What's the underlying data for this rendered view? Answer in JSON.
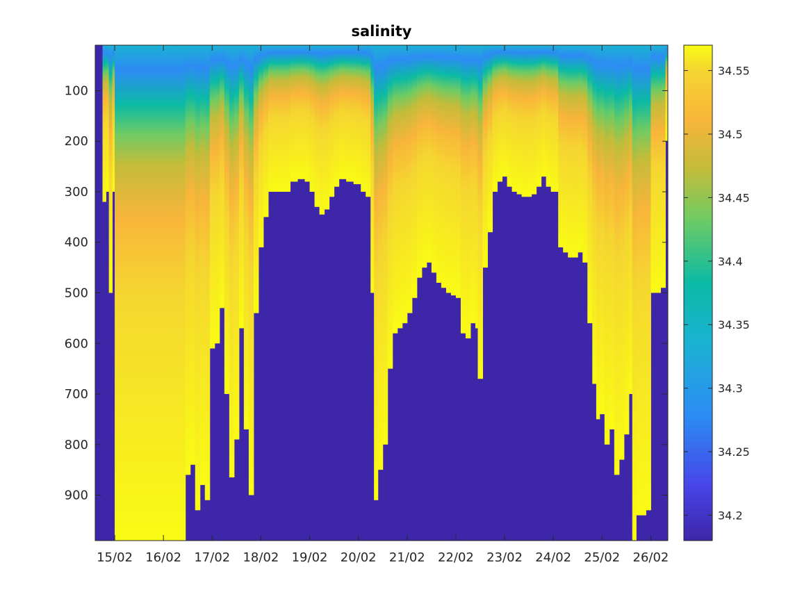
{
  "chart_data": {
    "type": "heatmap",
    "title": "salinity",
    "xlabel": "",
    "ylabel": "",
    "x_tick_labels": [
      "15/02",
      "16/02",
      "17/02",
      "18/02",
      "19/02",
      "20/02",
      "21/02",
      "22/02",
      "23/02",
      "24/02",
      "25/02",
      "26/02"
    ],
    "x_range_days": [
      14.6,
      26.35
    ],
    "y_ticks": [
      100,
      200,
      300,
      400,
      500,
      600,
      700,
      800,
      900
    ],
    "y_range": [
      10,
      990
    ],
    "y_reversed": true,
    "colorbar": {
      "range": [
        34.18,
        34.57
      ],
      "ticks": [
        34.2,
        34.25,
        34.3,
        34.35,
        34.4,
        34.45,
        34.5,
        34.55
      ],
      "tick_labels": [
        "34.2",
        "34.25",
        "34.3",
        "34.35",
        "34.4",
        "34.45",
        "34.5",
        "34.55"
      ],
      "colormap": [
        "#3e26a8",
        "#4744e8",
        "#2d8bf4",
        "#1bb2d3",
        "#0bbaa5",
        "#6fcb63",
        "#c3bc3a",
        "#f8b53a",
        "#f5d630",
        "#f9fb14"
      ]
    },
    "fill_color": "#3e26a8",
    "profile_bottom_depth": [
      [
        14.75,
        320
      ],
      [
        14.82,
        300
      ],
      [
        14.88,
        500
      ],
      [
        14.95,
        300
      ],
      [
        15.0,
        990
      ],
      [
        15.4,
        990
      ],
      [
        15.6,
        990
      ],
      [
        15.8,
        990
      ],
      [
        16.0,
        990
      ],
      [
        16.2,
        990
      ],
      [
        16.35,
        990
      ],
      [
        16.45,
        860
      ],
      [
        16.55,
        840
      ],
      [
        16.65,
        930
      ],
      [
        16.75,
        880
      ],
      [
        16.85,
        910
      ],
      [
        16.95,
        610
      ],
      [
        17.05,
        600
      ],
      [
        17.15,
        530
      ],
      [
        17.25,
        700
      ],
      [
        17.35,
        865
      ],
      [
        17.45,
        790
      ],
      [
        17.55,
        570
      ],
      [
        17.65,
        770
      ],
      [
        17.75,
        900
      ],
      [
        17.85,
        540
      ],
      [
        17.95,
        410
      ],
      [
        18.05,
        350
      ],
      [
        18.15,
        300
      ],
      [
        18.3,
        300
      ],
      [
        18.45,
        300
      ],
      [
        18.6,
        280
      ],
      [
        18.75,
        275
      ],
      [
        18.9,
        280
      ],
      [
        19.0,
        300
      ],
      [
        19.1,
        330
      ],
      [
        19.2,
        345
      ],
      [
        19.3,
        335
      ],
      [
        19.4,
        310
      ],
      [
        19.5,
        290
      ],
      [
        19.6,
        275
      ],
      [
        19.75,
        280
      ],
      [
        19.9,
        285
      ],
      [
        20.05,
        300
      ],
      [
        20.15,
        310
      ],
      [
        20.25,
        500
      ],
      [
        20.32,
        910
      ],
      [
        20.4,
        850
      ],
      [
        20.5,
        800
      ],
      [
        20.6,
        650
      ],
      [
        20.7,
        580
      ],
      [
        20.8,
        570
      ],
      [
        20.9,
        560
      ],
      [
        21.0,
        540
      ],
      [
        21.1,
        510
      ],
      [
        21.2,
        470
      ],
      [
        21.3,
        450
      ],
      [
        21.4,
        440
      ],
      [
        21.5,
        460
      ],
      [
        21.6,
        480
      ],
      [
        21.7,
        490
      ],
      [
        21.8,
        500
      ],
      [
        21.9,
        505
      ],
      [
        22.0,
        510
      ],
      [
        22.1,
        580
      ],
      [
        22.2,
        590
      ],
      [
        22.3,
        560
      ],
      [
        22.4,
        570
      ],
      [
        22.45,
        670
      ],
      [
        22.55,
        450
      ],
      [
        22.65,
        380
      ],
      [
        22.75,
        300
      ],
      [
        22.85,
        280
      ],
      [
        22.95,
        270
      ],
      [
        23.05,
        290
      ],
      [
        23.15,
        300
      ],
      [
        23.25,
        305
      ],
      [
        23.35,
        310
      ],
      [
        23.45,
        310
      ],
      [
        23.55,
        305
      ],
      [
        23.65,
        290
      ],
      [
        23.75,
        270
      ],
      [
        23.85,
        290
      ],
      [
        23.95,
        300
      ],
      [
        24.1,
        410
      ],
      [
        24.2,
        420
      ],
      [
        24.3,
        430
      ],
      [
        24.4,
        430
      ],
      [
        24.5,
        420
      ],
      [
        24.6,
        440
      ],
      [
        24.7,
        560
      ],
      [
        24.8,
        680
      ],
      [
        24.88,
        750
      ],
      [
        24.95,
        740
      ],
      [
        25.05,
        800
      ],
      [
        25.15,
        770
      ],
      [
        25.25,
        860
      ],
      [
        25.35,
        830
      ],
      [
        25.45,
        780
      ],
      [
        25.55,
        700
      ],
      [
        25.62,
        990
      ],
      [
        25.7,
        940
      ],
      [
        25.8,
        940
      ],
      [
        25.9,
        930
      ],
      [
        26.0,
        500
      ],
      [
        26.1,
        500
      ],
      [
        26.2,
        490
      ],
      [
        26.3,
        200
      ],
      [
        26.35,
        120
      ]
    ]
  }
}
